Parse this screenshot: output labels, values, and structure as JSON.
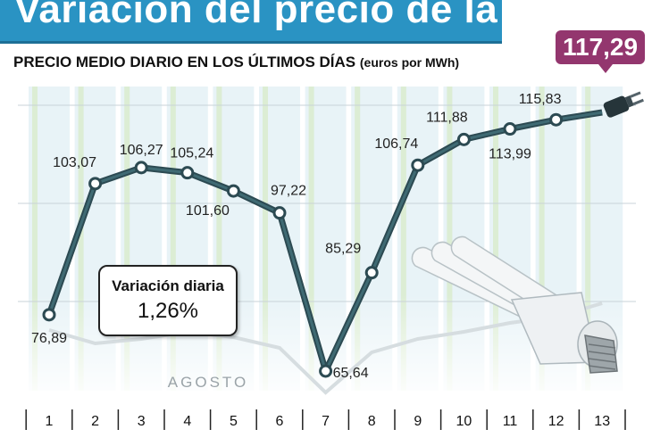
{
  "title": "Variación del precio de la luz",
  "subtitle": "PRECIO MEDIO DIARIO EN LOS ÚLTIMOS DÍAS",
  "subtitle_unit": "(euros por MWh)",
  "latest_value_label": "117,29",
  "variation": {
    "label": "Variación diaria",
    "value": "1,26%"
  },
  "month_label": "AGOSTO",
  "colors": {
    "title_bar": "#2a93c3",
    "badge": "#93366e",
    "line": "#2c4a52",
    "column_light": "#e8f3f7",
    "column_stripe": "#d7e9c4"
  },
  "icons": [
    "plug-icon",
    "light-bulb-icon"
  ],
  "chart_data": {
    "type": "line",
    "categories": [
      "1",
      "2",
      "3",
      "4",
      "5",
      "6",
      "7",
      "8",
      "9",
      "10",
      "11",
      "12",
      "13"
    ],
    "series": [
      {
        "values": [
          76.89,
          103.07,
          106.27,
          105.24,
          101.6,
          97.22,
          65.64,
          85.29,
          106.74,
          111.88,
          113.99,
          115.83,
          117.29
        ],
        "labels": [
          "76,89",
          "103,07",
          "106,27",
          "105,24",
          "101,60",
          "97,22",
          "65,64",
          "85,29",
          "106,74",
          "111,88",
          "113,99",
          "115,83",
          "117,29"
        ]
      }
    ],
    "title": "PRECIO MEDIO DIARIO EN LOS ÚLTIMOS DÍAS",
    "ylabel": "euros por MWh",
    "xlabel": "AGOSTO",
    "grid": true,
    "legend": "none"
  }
}
